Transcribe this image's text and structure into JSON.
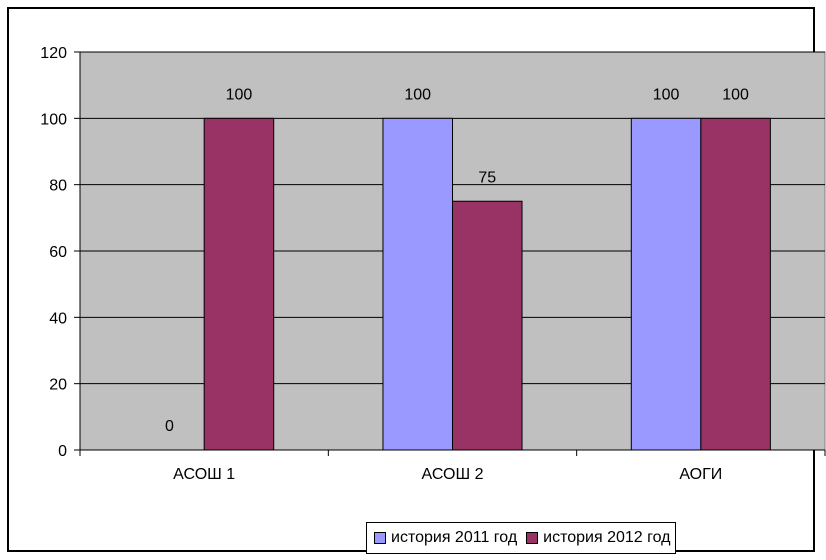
{
  "chart_data": {
    "type": "bar",
    "categories": [
      "АСОШ 1",
      "АСОШ 2",
      "АОГИ"
    ],
    "series": [
      {
        "name": "история 2011 год",
        "values": [
          0,
          100,
          100
        ],
        "color": "#9999FF"
      },
      {
        "name": "история 2012 год",
        "values": [
          100,
          75,
          100
        ],
        "color": "#993366"
      }
    ],
    "ylim": [
      0,
      120
    ],
    "yticks": [
      0,
      20,
      40,
      60,
      80,
      100,
      120
    ],
    "title": "",
    "xlabel": "",
    "ylabel": "",
    "grid": true,
    "plot_background": "#C0C0C0",
    "legend_position": "bottom"
  }
}
